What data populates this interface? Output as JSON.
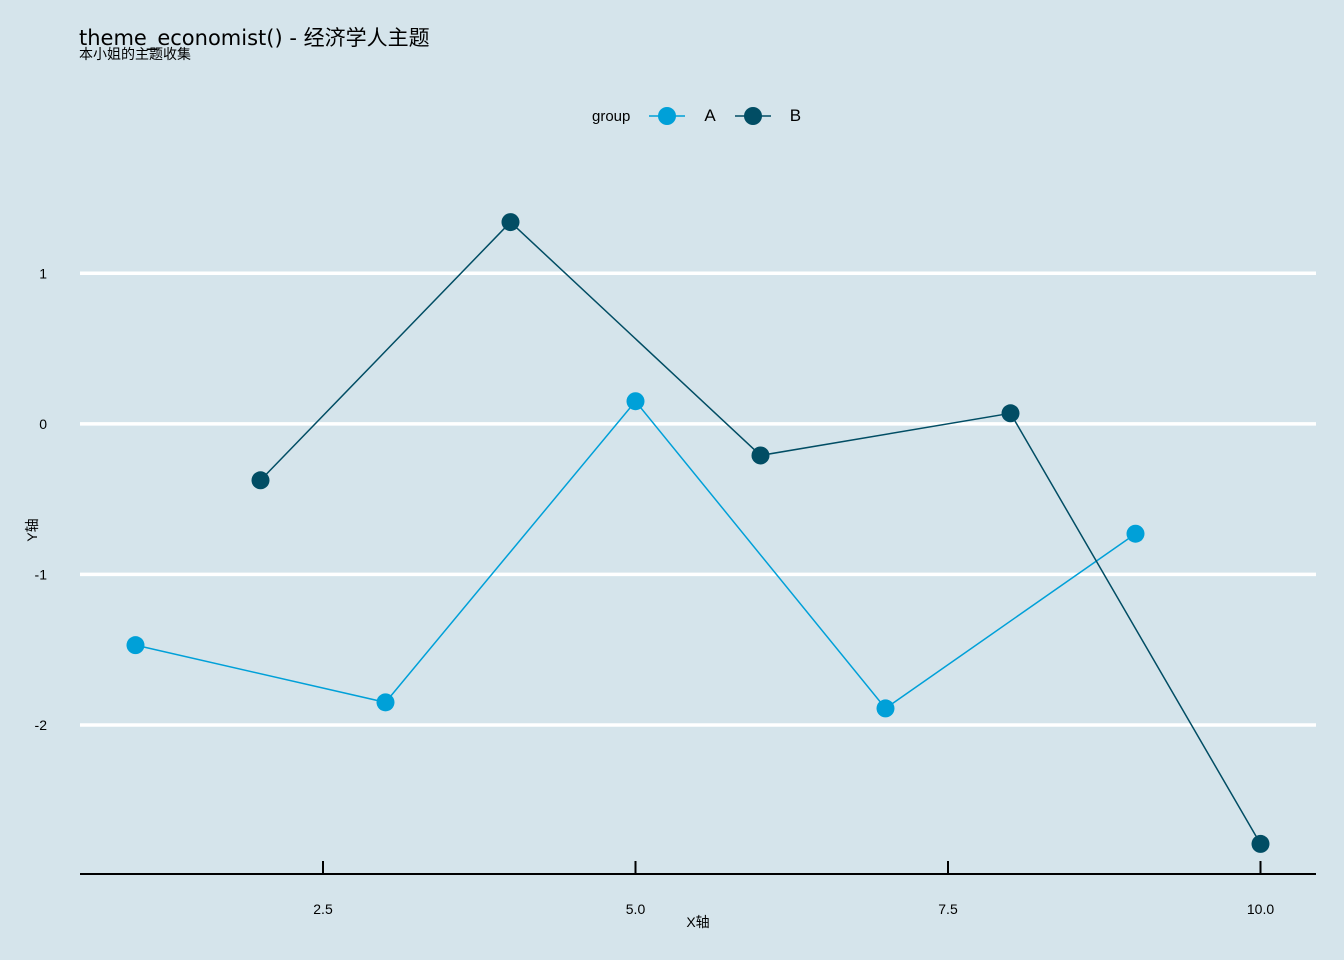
{
  "chart_data": {
    "type": "line",
    "title": "theme_economist() - 经济学人主题",
    "subtitle": "本小姐的主题收集",
    "xlabel": "X轴",
    "ylabel": "Y轴",
    "xlim": [
      0.556,
      10.444
    ],
    "ylim": [
      -2.99,
      1.48
    ],
    "xticks": [
      2.5,
      5.0,
      7.5,
      10.0
    ],
    "xtick_labels": [
      "2.5",
      "5.0",
      "7.5",
      "10.0"
    ],
    "yticks": [
      1,
      0,
      -1,
      -2
    ],
    "ytick_labels": [
      "1",
      "0",
      "-1",
      "-2"
    ],
    "grid": "horizontal",
    "legend": {
      "title": "group",
      "placement": "top"
    },
    "series": [
      {
        "name": "A",
        "color": "#00a0d8",
        "x": [
          1,
          3,
          5,
          7,
          9
        ],
        "y": [
          -1.47,
          -1.85,
          0.15,
          -1.89,
          -0.73
        ]
      },
      {
        "name": "B",
        "color": "#014d64",
        "x": [
          2,
          4,
          6,
          8,
          10
        ],
        "y": [
          -0.375,
          1.34,
          -0.21,
          0.07,
          -2.79
        ]
      }
    ]
  }
}
